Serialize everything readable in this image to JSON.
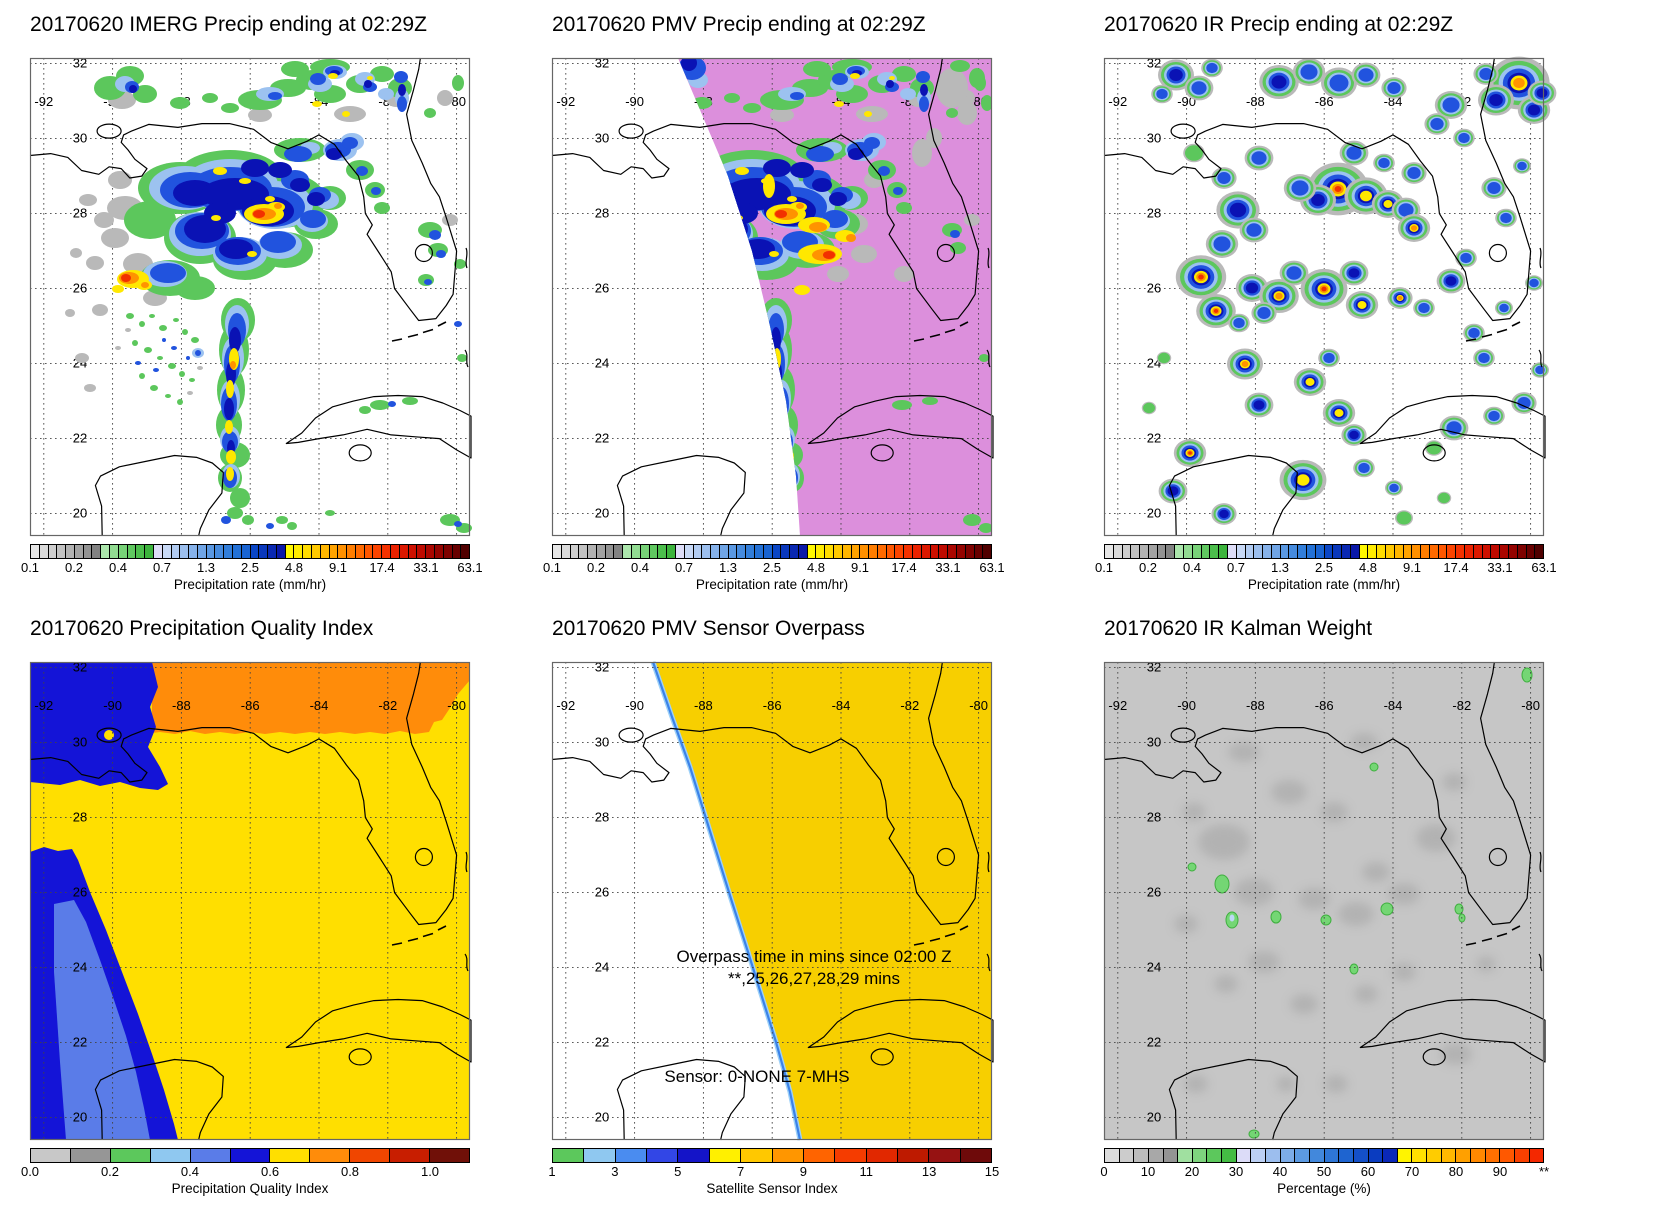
{
  "figure": {
    "date": "20170620",
    "ending_time": "02:29Z"
  },
  "panels": [
    {
      "id": "imerg",
      "title": "20170620 IMERG Precip ending at 02:29Z",
      "colorbar": "precip"
    },
    {
      "id": "pmv",
      "title": "20170620 PMV Precip ending at 02:29Z",
      "colorbar": "precip"
    },
    {
      "id": "ir",
      "title": "20170620 IR Precip ending at 02:29Z",
      "colorbar": "precip"
    },
    {
      "id": "pqi",
      "title": "20170620 Precipitation Quality Index",
      "colorbar": "pqi"
    },
    {
      "id": "overpass",
      "title": "20170620 PMV Sensor Overpass",
      "colorbar": "sensor",
      "annotations": [
        "Overpass time in mins since 02:00 Z",
        "**,25,26,27,28,29 mins",
        "Sensor:  0-NONE  7-MHS"
      ]
    },
    {
      "id": "kalman",
      "title": "20170620 IR Kalman Weight",
      "colorbar": "pct"
    }
  ],
  "axes": {
    "lon": [
      "-92",
      "-90",
      "-88",
      "-86",
      "-84",
      "-82",
      "-80"
    ],
    "lat": [
      "32",
      "30",
      "28",
      "26",
      "24",
      "22",
      "20"
    ]
  },
  "colorbars": {
    "precip": {
      "caption": "Precipitation rate (mm/hr)",
      "labels": [
        "0.1",
        "0.2",
        "0.4",
        "0.7",
        "1.3",
        "2.5",
        "4.8",
        "9.1",
        "17.4",
        "33.1",
        "63.1"
      ],
      "positions": [
        0,
        0.1,
        0.2,
        0.3,
        0.4,
        0.5,
        0.6,
        0.7,
        0.8,
        0.9,
        1
      ],
      "colors": [
        "#E6E6E6",
        "#DADADA",
        "#CECECE",
        "#C2C2C2",
        "#B2B2B2",
        "#A2A2A2",
        "#929292",
        "#828282",
        "#ACE6AC",
        "#92DC92",
        "#78D278",
        "#60C860",
        "#4CBE4C",
        "#3CB43C",
        "#DEDEF8",
        "#C8D9F6",
        "#B2CCF2",
        "#9CBFEE",
        "#86B2EA",
        "#70A5E6",
        "#5A98E2",
        "#468BDE",
        "#327EDA",
        "#2371D6",
        "#1964D2",
        "#0A46C6",
        "#0A38BC",
        "#0A28B2",
        "#0A18A8",
        "#FFF800",
        "#FFEC00",
        "#FFDC00",
        "#FFC900",
        "#FFB600",
        "#FFA300",
        "#FF9000",
        "#FF7D00",
        "#FF6A00",
        "#FF5700",
        "#FC4400",
        "#F43100",
        "#EA2200",
        "#DC1800",
        "#CE1000",
        "#BE0A00",
        "#AA0600",
        "#940300",
        "#7E0100",
        "#680000",
        "#500000"
      ]
    },
    "pqi": {
      "caption": "Precipitation Quality Index",
      "labels": [
        "0.0",
        "0.2",
        "0.4",
        "0.6",
        "0.8",
        "1.0"
      ],
      "positions": [
        0,
        0.1818,
        0.3636,
        0.5455,
        0.7273,
        0.9091
      ],
      "colors": [
        "#C8C8C8",
        "#969696",
        "#5CC85C",
        "#8FC8F0",
        "#5A7CE8",
        "#1414D7",
        "#FFDF00",
        "#FF8C0A",
        "#F04600",
        "#C81E00",
        "#701008"
      ]
    },
    "sensor": {
      "caption": "Satellite Sensor Index",
      "labels": [
        "1",
        "3",
        "5",
        "7",
        "9",
        "11",
        "13",
        "15"
      ],
      "positions": [
        0,
        0.1429,
        0.2857,
        0.4286,
        0.5714,
        0.7143,
        0.8571,
        1
      ],
      "colors": [
        "#5CC85C",
        "#8FC8F0",
        "#4A8CF0",
        "#3246E6",
        "#1414C8",
        "#FFF000",
        "#FFC800",
        "#FF9600",
        "#FF6400",
        "#F53C00",
        "#E12800",
        "#BE1A00",
        "#961212",
        "#6E0A0A"
      ]
    },
    "pct": {
      "caption": "Percentage (%)",
      "labels": [
        "0",
        "10",
        "20",
        "30",
        "40",
        "50",
        "60",
        "70",
        "80",
        "90",
        "**"
      ],
      "positions": [
        0,
        0.1,
        0.2,
        0.3,
        0.4,
        0.5,
        0.6,
        0.7,
        0.8,
        0.9,
        1
      ],
      "colors": [
        "#DCDCDC",
        "#CCCCCC",
        "#BCBCBC",
        "#A8A8A8",
        "#949494",
        "#A0E0A0",
        "#7ED47E",
        "#5CC85C",
        "#44BC44",
        "#DCDCF8",
        "#BCD0F4",
        "#9CBEEE",
        "#7CACE8",
        "#5C9AE2",
        "#4288DC",
        "#2E76D6",
        "#1E64D0",
        "#1450C8",
        "#0A3CC0",
        "#0A28B8",
        "#FFF400",
        "#FFE000",
        "#FFCC00",
        "#FFB800",
        "#FFA000",
        "#FF8800",
        "#FF7000",
        "#FF5800",
        "#FA4000",
        "#F42800"
      ]
    }
  },
  "map_colors": {
    "pmv_no_data_magenta": "#DC8FDC",
    "overpass_swath_yellow": "#F7CF00",
    "swath_edge_blue": "#3B82E8",
    "pqi_yellow": "#FFDF00",
    "pqi_orange": "#FF8C0A",
    "pqi_dark_blue": "#1414D7",
    "pqi_cornflower": "#5A7CE8",
    "kalman_gray": "#C6C6C6"
  },
  "chart_data": [
    {
      "type": "heatmap",
      "title": "20170620 IMERG Precip ending at 02:29Z",
      "variable": "precipitation rate",
      "units": "mm/hr",
      "extent": {
        "lon": [
          -92,
          -80
        ],
        "lat": [
          20,
          32
        ]
      },
      "scale_type": "log",
      "scale_ticks": [
        0.1,
        0.2,
        0.4,
        0.7,
        1.3,
        2.5,
        4.8,
        9.1,
        17.4,
        33.1,
        63.1
      ],
      "description": "Merged IMERG precipitation: heavy NE-SW band over NE Gulf of Mexico with embedded 9-30 mm/hr cores near 28N 85.5W and 26.3N 89.5W, narrow N-S band along 86.5W from 25.5N to 21N"
    },
    {
      "type": "heatmap",
      "title": "20170620 PMV Precip ending at 02:29Z",
      "variable": "precipitation rate",
      "units": "mm/hr",
      "extent": {
        "lon": [
          -92,
          -80
        ],
        "lat": [
          20,
          32
        ]
      },
      "scale_type": "log",
      "scale_ticks": [
        0.1,
        0.2,
        0.4,
        0.7,
        1.3,
        2.5,
        4.8,
        9.1,
        17.4,
        33.1,
        63.1
      ],
      "no_data_color": "#DC8FDC",
      "description": "Passive-microwave precipitation inside a diagonal MHS swath; magenta = no PMV data, white wedge west of swath edge"
    },
    {
      "type": "heatmap",
      "title": "20170620 IR Precip ending at 02:29Z",
      "variable": "precipitation rate",
      "units": "mm/hr",
      "extent": {
        "lon": [
          -92,
          -80
        ],
        "lat": [
          20,
          32
        ]
      },
      "scale_type": "log",
      "scale_ticks": [
        0.1,
        0.2,
        0.4,
        0.7,
        1.3,
        2.5,
        4.8,
        9.1,
        17.4,
        33.1,
        63.1
      ],
      "description": "IR-estimated precipitation: many isolated convective cells with 9-30+ mm/hr cores scattered over the Gulf, large cell at the NE corner near 31.5N 80.3W"
    },
    {
      "type": "heatmap",
      "title": "20170620 Precipitation Quality Index",
      "variable": "quality index",
      "units": "",
      "extent": {
        "lon": [
          -92,
          -80
        ],
        "lat": [
          20,
          32
        ]
      },
      "scale_ticks": [
        0.0,
        0.2,
        0.4,
        0.6,
        0.8,
        1.0
      ],
      "regions": [
        {
          "color": "#FF8C0A",
          "approx_value": 0.75,
          "where": "land strip north of ~30.4N"
        },
        {
          "color": "#1414D7",
          "approx_value": 0.55,
          "where": "NW corner and SW diagonal swath"
        },
        {
          "color": "#5A7CE8",
          "approx_value": 0.45,
          "where": "Bay of Campeche area"
        },
        {
          "color": "#FFDF00",
          "approx_value": 0.65,
          "where": "everywhere else"
        }
      ]
    },
    {
      "type": "map",
      "title": "20170620 PMV Sensor Overpass",
      "variable": "satellite sensor index",
      "extent": {
        "lon": [
          -92,
          -80
        ],
        "lat": [
          20,
          32
        ]
      },
      "scale_ticks": [
        1,
        3,
        5,
        7,
        9,
        11,
        13,
        15
      ],
      "annotations": [
        "Overpass time in mins since 02:00 Z",
        "**,25,26,27,28,29 mins",
        "Sensor:  0-NONE  7-MHS"
      ],
      "description": "Sensor 7 (MHS, gold) covers the region east of a NNE-SSW swath edge; west of the edge no overpass (0-NONE, white)"
    },
    {
      "type": "heatmap",
      "title": "20170620 IR Kalman Weight",
      "variable": "Kalman weight",
      "units": "%",
      "extent": {
        "lon": [
          -92,
          -80
        ],
        "lat": [
          20,
          32
        ]
      },
      "scale_ticks": [
        0,
        10,
        20,
        30,
        40,
        50,
        60,
        70,
        80,
        90
      ],
      "description": "Mostly 0-15% (gray) with isolated 20-30% (green) spots over the central Gulf"
    }
  ]
}
